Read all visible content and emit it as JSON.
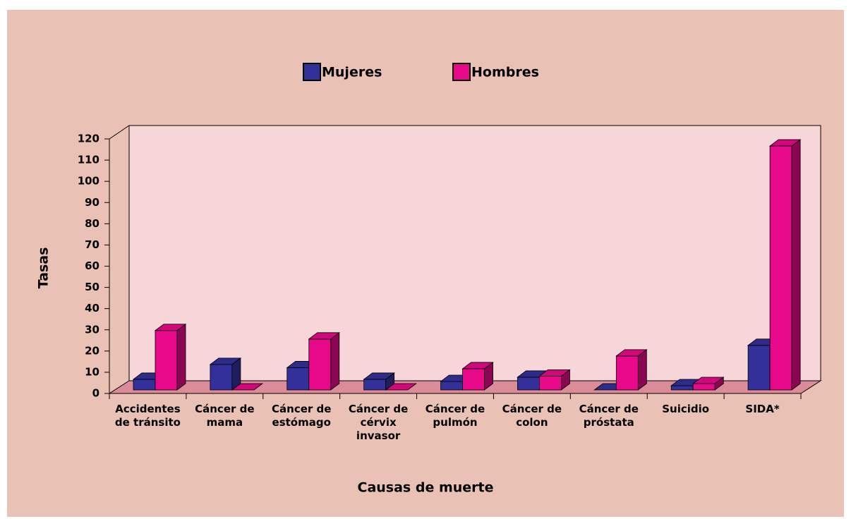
{
  "chart_data": {
    "type": "bar3d",
    "categories": [
      "Accidentes de tránsito",
      "Cáncer de mama",
      "Cáncer de estómago",
      "Cáncer de cérvix invasor",
      "Cáncer de pulmón",
      "Cáncer de colon",
      "Cáncer de próstata",
      "Suicidio",
      "SIDA*"
    ],
    "series": [
      {
        "name": "Mujeres",
        "color": "#33309a",
        "values": [
          5,
          12,
          10.5,
          5,
          4,
          6,
          0,
          2,
          21
        ]
      },
      {
        "name": "Hombres",
        "color": "#e8088a",
        "values": [
          28,
          0,
          24,
          0,
          10,
          6.5,
          16,
          3,
          115
        ]
      }
    ],
    "ylabel": "Tasas",
    "xlabel": "Causas de muerte",
    "ylim": [
      0,
      120
    ],
    "yticks": [
      0,
      10,
      20,
      30,
      40,
      50,
      60,
      70,
      80,
      90,
      100,
      110,
      120
    ],
    "legend": "top"
  }
}
